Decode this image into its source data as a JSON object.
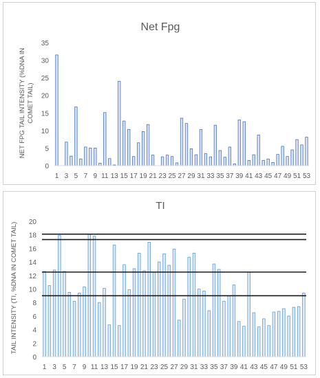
{
  "chart_data": [
    {
      "type": "bar",
      "title": "Net Fpg",
      "ylabel_lines": [
        "NET FPG TAIL INTENSITY (%DNA IN",
        "COMET TAIL)"
      ],
      "ylim": [
        0,
        35
      ],
      "yticks": [
        0,
        5,
        10,
        15,
        20,
        25,
        30,
        35
      ],
      "x_tick_labels": [
        "1",
        "3",
        "5",
        "7",
        "9",
        "11",
        "13",
        "15",
        "17",
        "19",
        "21",
        "23",
        "25",
        "27",
        "29",
        "31",
        "33",
        "35",
        "37",
        "39",
        "41",
        "43",
        "45",
        "47",
        "49",
        "51",
        "53"
      ],
      "categories": [
        1,
        2,
        3,
        4,
        5,
        6,
        7,
        8,
        9,
        10,
        11,
        12,
        13,
        14,
        15,
        16,
        17,
        18,
        19,
        20,
        21,
        22,
        23,
        24,
        25,
        26,
        27,
        28,
        29,
        30,
        31,
        32,
        33,
        34,
        35,
        36,
        37,
        38,
        39,
        40,
        41,
        42,
        43,
        44,
        45,
        46,
        47,
        48,
        49,
        50,
        51,
        52,
        53
      ],
      "values": [
        31.5,
        0,
        6.7,
        2.7,
        16.7,
        1.9,
        5.3,
        5.0,
        5.0,
        0.7,
        15.1,
        2.0,
        0.2,
        24.0,
        12.7,
        10.3,
        2.6,
        6.5,
        9.7,
        11.7,
        3.0,
        0,
        2.5,
        3.0,
        2.6,
        0.8,
        13.5,
        12.0,
        4.8,
        3.1,
        10.3,
        3.4,
        2.5,
        11.5,
        4.3,
        2.4,
        5.3,
        0.5,
        13.0,
        12.5,
        1.5,
        3.1,
        8.7,
        1.5,
        1.9,
        0.9,
        3.2,
        5.5,
        2.6,
        4.5,
        7.4,
        5.9,
        8.1
      ],
      "grid": false,
      "legend": "none"
    },
    {
      "type": "bar",
      "title": "TI",
      "ylabel_lines": [
        "TAIL INTENSITY (TI, %DNA IN COMET TAIL)"
      ],
      "ylim": [
        0,
        20
      ],
      "yticks": [
        0,
        2,
        4,
        6,
        8,
        10,
        12,
        14,
        16,
        18,
        20
      ],
      "x_tick_labels": [
        "1",
        "3",
        "5",
        "7",
        "9",
        "11",
        "13",
        "15",
        "17",
        "19",
        "21",
        "23",
        "25",
        "27",
        "29",
        "31",
        "33",
        "35",
        "37",
        "39",
        "41",
        "43",
        "45",
        "47",
        "49",
        "51",
        "53"
      ],
      "categories": [
        1,
        2,
        3,
        4,
        5,
        6,
        7,
        8,
        9,
        10,
        11,
        12,
        13,
        14,
        15,
        16,
        17,
        18,
        19,
        20,
        21,
        22,
        23,
        24,
        25,
        26,
        27,
        28,
        29,
        30,
        31,
        32,
        33,
        34,
        35,
        36,
        37,
        38,
        39,
        40,
        41,
        42,
        43,
        44,
        45,
        46,
        47,
        48,
        49,
        50,
        51,
        52,
        53
      ],
      "values": [
        12.6,
        10.5,
        12.8,
        17.9,
        12.6,
        9.5,
        8.2,
        9.4,
        10.3,
        18.1,
        17.8,
        8.0,
        10.1,
        4.7,
        16.5,
        4.6,
        13.6,
        9.9,
        13.0,
        15.3,
        12.7,
        16.9,
        12.5,
        14.0,
        15.2,
        13.5,
        15.9,
        5.4,
        8.5,
        14.7,
        15.3,
        10.0,
        9.7,
        6.8,
        13.7,
        12.9,
        8.2,
        9.0,
        10.6,
        5.2,
        4.5,
        12.5,
        6.5,
        4.4,
        5.6,
        4.6,
        6.6,
        6.7,
        7.1,
        6.0,
        7.3,
        7.4,
        9.4
      ],
      "reference_lines": [
        18.1,
        17.3,
        12.5,
        9.0
      ],
      "grid": false,
      "legend": "none"
    }
  ]
}
